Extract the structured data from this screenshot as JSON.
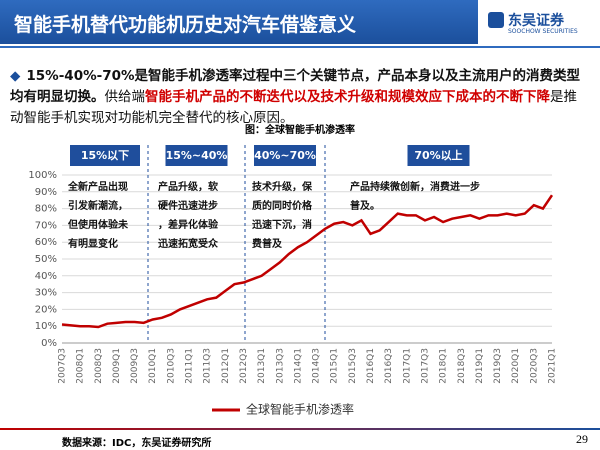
{
  "header": {
    "title": "智能手机替代功能机历史对汽车借鉴意义",
    "logo": {
      "name": "东吴证券",
      "subtitle": "SOOCHOW SECURITIES"
    }
  },
  "body": {
    "runs": [
      "15%-40%-70%是智能手机渗透率过程中三个关键节点，产品本身以及主流用户的消费类型均有明显切换。",
      "供给端",
      "智能手机产品的不断迭代以及技术升级和规模效应下成本的不断下降",
      "是推动智能手机实现对功能机完全替代的核心原因。"
    ]
  },
  "chart_data": {
    "type": "line",
    "title": "图：全球智能手机渗透率",
    "categories": [
      "2007Q3",
      null,
      "2008Q1",
      null,
      "2008Q3",
      null,
      "2009Q1",
      null,
      "2009Q3",
      null,
      "2010Q1",
      null,
      "2010Q3",
      null,
      "2011Q1",
      null,
      "2011Q3",
      null,
      "2012Q1",
      null,
      "2012Q3",
      null,
      "2013Q1",
      null,
      "2013Q3",
      null,
      "2014Q1",
      null,
      "2014Q3",
      null,
      "2015Q1",
      null,
      "2015Q3",
      null,
      "2016Q1",
      null,
      "2016Q3",
      null,
      "2017Q1",
      null,
      "2017Q3",
      null,
      "2018Q1",
      null,
      "2018Q3",
      null,
      "2019Q1",
      null,
      "2019Q3",
      null,
      "2020Q1",
      null,
      "2020Q3",
      null,
      "2021Q1"
    ],
    "series": [
      {
        "name": "全球智能手机渗透率",
        "color": "#c00000",
        "values": [
          11,
          10.5,
          10,
          10,
          9.5,
          11.5,
          12,
          12.5,
          12.5,
          12,
          14,
          15,
          17,
          20,
          22,
          24,
          26,
          27,
          31,
          35,
          36,
          38,
          40,
          44,
          48,
          53,
          57,
          60,
          64,
          68,
          71,
          72,
          70,
          73,
          65,
          67,
          72,
          77,
          76,
          76,
          73,
          75,
          72,
          74,
          75,
          76,
          74,
          76,
          76,
          77,
          76,
          77,
          82,
          80,
          88
        ]
      }
    ],
    "ylim": [
      0,
      100
    ],
    "yticks": [
      {
        "value": 0,
        "label": "0%"
      },
      {
        "value": 10,
        "label": "10%"
      },
      {
        "value": 20,
        "label": "20%"
      },
      {
        "value": 30,
        "label": "30%"
      },
      {
        "value": 40,
        "label": "40%"
      },
      {
        "value": 50,
        "label": "50%"
      },
      {
        "value": 60,
        "label": "60%"
      },
      {
        "value": 70,
        "label": "70%"
      },
      {
        "value": 80,
        "label": "80%"
      },
      {
        "value": 90,
        "label": "90%"
      },
      {
        "value": 100,
        "label": "100%"
      }
    ],
    "grid": true,
    "phases": [
      {
        "label": "15%以下",
        "note": [
          "全新产品出现",
          "引发新潮流，",
          "但使用体验未",
          "有明显变化"
        ]
      },
      {
        "label": "15%~40%",
        "note": [
          "产品升级，软",
          "硬件迅速进步",
          "，差异化体验",
          "迅速拓宽受众"
        ]
      },
      {
        "label": "40%~70%",
        "note": [
          "技术升级，保",
          "质的同时价格",
          "迅速下沉，消",
          "费普及"
        ]
      },
      {
        "label": "70%以上",
        "note": [
          "产品持续微创新，消费进一步",
          "普及。"
        ]
      }
    ]
  },
  "footer": {
    "source": "数据来源：IDC，东吴证券研究所",
    "page": "29"
  }
}
